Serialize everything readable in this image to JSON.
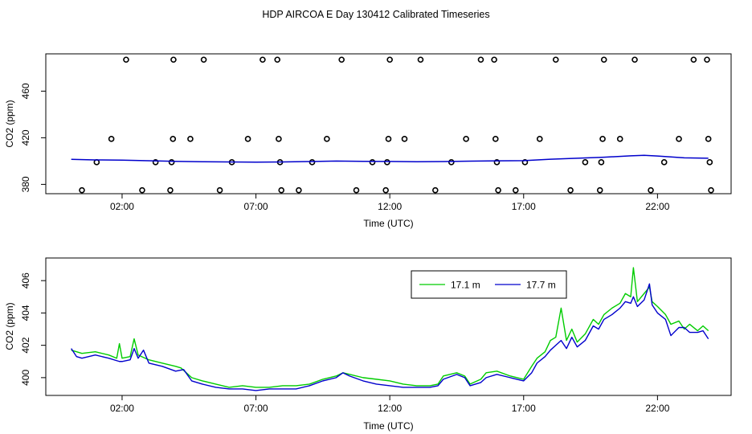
{
  "title": "HDP AIRCOA E  Day 130412  Calibrated Timeseries",
  "chart_data": [
    {
      "type": "scatter+line",
      "xlabel": "Time (UTC)",
      "ylabel": "CO2 (ppm)",
      "x_unit": "hours UTC",
      "xlim": [
        -0.85,
        24.75
      ],
      "ylim": [
        372,
        492
      ],
      "x_ticks": [
        2,
        7,
        12,
        17,
        22
      ],
      "x_tick_labels": [
        "02:00",
        "07:00",
        "12:00",
        "17:00",
        "22:00"
      ],
      "y_ticks": [
        380,
        420,
        460
      ],
      "y_tick_labels": [
        "380",
        "420",
        "460"
      ],
      "line_color": "#0000cc",
      "point_color": "#000000",
      "points": [
        [
          0.5,
          375
        ],
        [
          1.05,
          399
        ],
        [
          1.6,
          419
        ],
        [
          2.15,
          487
        ],
        [
          2.75,
          375
        ],
        [
          3.25,
          399
        ],
        [
          3.8,
          375
        ],
        [
          3.85,
          399
        ],
        [
          3.9,
          419
        ],
        [
          3.92,
          487
        ],
        [
          4.55,
          419
        ],
        [
          5.05,
          487
        ],
        [
          5.65,
          375
        ],
        [
          6.1,
          399
        ],
        [
          6.7,
          419
        ],
        [
          7.25,
          487
        ],
        [
          7.8,
          487
        ],
        [
          7.85,
          419
        ],
        [
          7.9,
          399
        ],
        [
          7.95,
          375
        ],
        [
          8.6,
          375
        ],
        [
          9.1,
          399
        ],
        [
          9.65,
          419
        ],
        [
          10.2,
          487
        ],
        [
          10.75,
          375
        ],
        [
          11.35,
          399
        ],
        [
          11.85,
          375
        ],
        [
          11.9,
          399
        ],
        [
          11.95,
          419
        ],
        [
          12.0,
          487
        ],
        [
          12.55,
          419
        ],
        [
          13.15,
          487
        ],
        [
          13.7,
          375
        ],
        [
          14.3,
          399
        ],
        [
          14.85,
          419
        ],
        [
          15.4,
          487
        ],
        [
          15.9,
          487
        ],
        [
          15.95,
          419
        ],
        [
          16.0,
          399
        ],
        [
          16.05,
          375
        ],
        [
          16.7,
          375
        ],
        [
          17.05,
          399
        ],
        [
          17.6,
          419
        ],
        [
          18.2,
          487
        ],
        [
          18.75,
          375
        ],
        [
          19.3,
          399
        ],
        [
          19.85,
          375
        ],
        [
          19.9,
          399
        ],
        [
          19.95,
          419
        ],
        [
          20.0,
          487
        ],
        [
          20.6,
          419
        ],
        [
          21.15,
          487
        ],
        [
          21.75,
          375
        ],
        [
          22.25,
          399
        ],
        [
          22.8,
          419
        ],
        [
          23.35,
          487
        ],
        [
          23.85,
          487
        ],
        [
          23.9,
          419
        ],
        [
          23.95,
          399
        ],
        [
          24.0,
          375
        ]
      ],
      "line": [
        [
          0.1,
          401.5
        ],
        [
          1.0,
          401.0
        ],
        [
          2.0,
          400.8
        ],
        [
          3.0,
          400.3
        ],
        [
          4.0,
          399.8
        ],
        [
          5.0,
          399.4
        ],
        [
          6.0,
          399.2
        ],
        [
          7.0,
          399.1
        ],
        [
          8.0,
          399.2
        ],
        [
          9.0,
          399.6
        ],
        [
          10.0,
          400.0
        ],
        [
          11.0,
          399.8
        ],
        [
          12.0,
          399.7
        ],
        [
          13.0,
          399.4
        ],
        [
          14.0,
          399.6
        ],
        [
          15.0,
          399.9
        ],
        [
          16.0,
          400.2
        ],
        [
          17.0,
          400.4
        ],
        [
          18.0,
          401.6
        ],
        [
          19.0,
          402.4
        ],
        [
          20.0,
          403.3
        ],
        [
          21.0,
          404.5
        ],
        [
          21.5,
          404.9
        ],
        [
          22.0,
          404.3
        ],
        [
          23.0,
          402.8
        ],
        [
          23.9,
          402.4
        ]
      ]
    },
    {
      "type": "line",
      "xlabel": "Time (UTC)",
      "ylabel": "CO2 (ppm)",
      "x_unit": "hours UTC",
      "xlim": [
        -0.85,
        24.75
      ],
      "ylim": [
        398.9,
        407.4
      ],
      "x_ticks": [
        2,
        7,
        12,
        17,
        22
      ],
      "x_tick_labels": [
        "02:00",
        "07:00",
        "12:00",
        "17:00",
        "22:00"
      ],
      "y_ticks": [
        400,
        402,
        404,
        406
      ],
      "y_tick_labels": [
        "400",
        "402",
        "404",
        "406"
      ],
      "legend_position": "top-right",
      "series": [
        {
          "name": "17.1 m",
          "color": "#00cc00",
          "points": [
            [
              0.1,
              401.7
            ],
            [
              0.5,
              401.5
            ],
            [
              1.0,
              401.6
            ],
            [
              1.5,
              401.4
            ],
            [
              1.8,
              401.2
            ],
            [
              1.9,
              402.1
            ],
            [
              2.0,
              401.2
            ],
            [
              2.3,
              401.3
            ],
            [
              2.45,
              402.4
            ],
            [
              2.6,
              401.4
            ],
            [
              3.0,
              401.1
            ],
            [
              3.5,
              400.9
            ],
            [
              4.0,
              400.7
            ],
            [
              4.2,
              400.6
            ],
            [
              4.6,
              400.0
            ],
            [
              5.0,
              399.8
            ],
            [
              5.5,
              399.6
            ],
            [
              6.0,
              399.4
            ],
            [
              6.5,
              399.5
            ],
            [
              7.0,
              399.4
            ],
            [
              7.5,
              399.4
            ],
            [
              8.0,
              399.5
            ],
            [
              8.5,
              399.5
            ],
            [
              9.0,
              399.6
            ],
            [
              9.5,
              399.9
            ],
            [
              10.0,
              400.1
            ],
            [
              10.25,
              400.3
            ],
            [
              10.5,
              400.2
            ],
            [
              11.0,
              400.0
            ],
            [
              11.5,
              399.9
            ],
            [
              12.0,
              399.8
            ],
            [
              12.5,
              399.6
            ],
            [
              13.0,
              399.5
            ],
            [
              13.5,
              399.5
            ],
            [
              13.8,
              399.6
            ],
            [
              14.0,
              400.1
            ],
            [
              14.5,
              400.3
            ],
            [
              14.8,
              400.1
            ],
            [
              15.0,
              399.6
            ],
            [
              15.4,
              399.9
            ],
            [
              15.6,
              400.3
            ],
            [
              16.0,
              400.4
            ],
            [
              16.5,
              400.1
            ],
            [
              17.0,
              399.9
            ],
            [
              17.3,
              400.7
            ],
            [
              17.5,
              401.2
            ],
            [
              17.8,
              401.6
            ],
            [
              18.0,
              402.3
            ],
            [
              18.2,
              402.5
            ],
            [
              18.4,
              404.3
            ],
            [
              18.6,
              402.3
            ],
            [
              18.8,
              403.0
            ],
            [
              19.0,
              402.2
            ],
            [
              19.3,
              402.7
            ],
            [
              19.6,
              403.6
            ],
            [
              19.8,
              403.3
            ],
            [
              20.0,
              403.9
            ],
            [
              20.3,
              404.3
            ],
            [
              20.6,
              404.6
            ],
            [
              20.8,
              405.2
            ],
            [
              21.0,
              405.0
            ],
            [
              21.1,
              406.8
            ],
            [
              21.25,
              404.7
            ],
            [
              21.5,
              405.2
            ],
            [
              21.7,
              405.6
            ],
            [
              21.8,
              404.7
            ],
            [
              22.0,
              404.4
            ],
            [
              22.3,
              403.9
            ],
            [
              22.5,
              403.3
            ],
            [
              22.8,
              403.5
            ],
            [
              23.0,
              403.0
            ],
            [
              23.2,
              403.3
            ],
            [
              23.5,
              402.9
            ],
            [
              23.7,
              403.2
            ],
            [
              23.9,
              402.9
            ]
          ]
        },
        {
          "name": "17.7 m",
          "color": "#0000cc",
          "points": [
            [
              0.1,
              401.8
            ],
            [
              0.3,
              401.3
            ],
            [
              0.5,
              401.2
            ],
            [
              1.0,
              401.4
            ],
            [
              1.5,
              401.2
            ],
            [
              1.9,
              401.0
            ],
            [
              2.0,
              401.0
            ],
            [
              2.3,
              401.1
            ],
            [
              2.45,
              401.8
            ],
            [
              2.6,
              401.2
            ],
            [
              2.8,
              401.7
            ],
            [
              3.0,
              400.9
            ],
            [
              3.5,
              400.7
            ],
            [
              4.0,
              400.4
            ],
            [
              4.3,
              400.5
            ],
            [
              4.6,
              399.8
            ],
            [
              5.0,
              399.6
            ],
            [
              5.5,
              399.4
            ],
            [
              6.0,
              399.3
            ],
            [
              6.5,
              399.3
            ],
            [
              7.0,
              399.2
            ],
            [
              7.5,
              399.3
            ],
            [
              8.0,
              399.3
            ],
            [
              8.5,
              399.3
            ],
            [
              9.0,
              399.5
            ],
            [
              9.5,
              399.8
            ],
            [
              10.0,
              400.0
            ],
            [
              10.25,
              400.3
            ],
            [
              10.5,
              400.1
            ],
            [
              11.0,
              399.8
            ],
            [
              11.5,
              399.6
            ],
            [
              12.0,
              399.5
            ],
            [
              12.5,
              399.4
            ],
            [
              13.0,
              399.4
            ],
            [
              13.5,
              399.4
            ],
            [
              13.8,
              399.5
            ],
            [
              14.0,
              399.9
            ],
            [
              14.5,
              400.2
            ],
            [
              14.8,
              400.0
            ],
            [
              15.0,
              399.5
            ],
            [
              15.4,
              399.7
            ],
            [
              15.6,
              400.0
            ],
            [
              16.0,
              400.2
            ],
            [
              16.5,
              400.0
            ],
            [
              17.0,
              399.8
            ],
            [
              17.3,
              400.3
            ],
            [
              17.5,
              400.9
            ],
            [
              17.8,
              401.3
            ],
            [
              18.0,
              401.7
            ],
            [
              18.2,
              402.0
            ],
            [
              18.4,
              402.3
            ],
            [
              18.6,
              401.8
            ],
            [
              18.8,
              402.5
            ],
            [
              19.0,
              401.9
            ],
            [
              19.3,
              402.3
            ],
            [
              19.6,
              403.2
            ],
            [
              19.8,
              403.0
            ],
            [
              20.0,
              403.6
            ],
            [
              20.3,
              403.9
            ],
            [
              20.6,
              404.3
            ],
            [
              20.8,
              404.7
            ],
            [
              21.0,
              404.6
            ],
            [
              21.1,
              405.0
            ],
            [
              21.25,
              404.4
            ],
            [
              21.5,
              404.8
            ],
            [
              21.7,
              405.8
            ],
            [
              21.8,
              404.5
            ],
            [
              22.0,
              404.0
            ],
            [
              22.3,
              403.6
            ],
            [
              22.5,
              402.6
            ],
            [
              22.8,
              403.1
            ],
            [
              23.0,
              403.1
            ],
            [
              23.2,
              402.8
            ],
            [
              23.5,
              402.8
            ],
            [
              23.7,
              402.9
            ],
            [
              23.9,
              402.4
            ]
          ]
        }
      ]
    }
  ]
}
